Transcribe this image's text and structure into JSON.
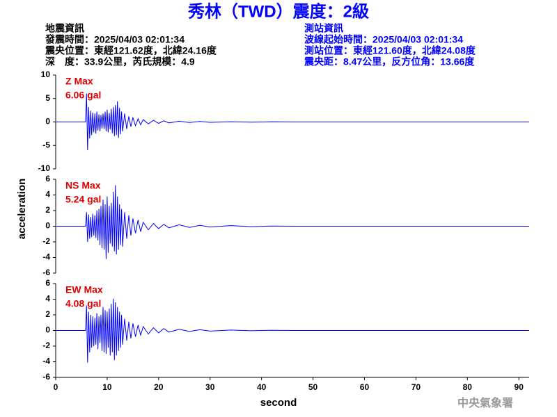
{
  "header": {
    "title": "秀林（TWD）震度：2級",
    "left": [
      "地震資訊",
      "發震時間：2025/04/03 02:01:34",
      "震央位置：東經121.62度，北緯24.16度",
      "深　度：33.9公里，芮氏規模：4.9"
    ],
    "right": [
      "測站資訊",
      "波線起始時間：2025/04/03 02:01:34",
      "測站位置：東經121.60度，北緯24.08度",
      "震央距：8.47公里，反方位角：13.66度"
    ]
  },
  "footer": "中央氣象署",
  "chart_data": [
    {
      "type": "line",
      "annotations": [
        "Z Max",
        "6.06 gal"
      ],
      "xlim": [
        0,
        92
      ],
      "ylim": [
        -10,
        10
      ],
      "yticks": [
        -10,
        -5,
        0,
        5,
        10
      ],
      "x": [
        0,
        5.8,
        6.0,
        6.2,
        6.4,
        6.6,
        6.8,
        7.0,
        7.2,
        7.4,
        7.6,
        7.8,
        8.0,
        8.2,
        8.4,
        8.6,
        8.8,
        9.0,
        9.2,
        9.4,
        9.6,
        9.8,
        10.0,
        10.2,
        10.4,
        10.6,
        10.8,
        11.0,
        11.2,
        11.4,
        11.6,
        11.8,
        12.0,
        12.2,
        12.4,
        12.6,
        12.8,
        13.0,
        13.4,
        13.8,
        14.2,
        14.6,
        15.0,
        15.5,
        16,
        16.5,
        17,
        18,
        19,
        20,
        21,
        22,
        24,
        26,
        28,
        30,
        34,
        38,
        42,
        46,
        50,
        92
      ],
      "series": [
        {
          "name": "Z",
          "color": "#0000ff",
          "values": [
            0,
            0,
            6.06,
            -6.0,
            3.2,
            -3.5,
            2.4,
            -2.8,
            2.0,
            -2.2,
            1.8,
            -2.5,
            2.2,
            -1.8,
            1.6,
            -2.0,
            1.5,
            -1.4,
            1.8,
            -1.5,
            2.2,
            -2.0,
            2.6,
            -2.2,
            1.9,
            -1.6,
            2.8,
            -2.4,
            3.2,
            -3.0,
            3.6,
            -2.8,
            4.4,
            -3.4,
            3.0,
            -2.6,
            2.2,
            -2.0,
            1.8,
            -1.5,
            1.2,
            -1.0,
            0.9,
            -0.8,
            0.7,
            -0.6,
            0.5,
            -0.4,
            0.35,
            -0.3,
            0.25,
            -0.2,
            0.15,
            -0.12,
            0.1,
            -0.08,
            0.05,
            -0.04,
            0.03,
            0,
            0,
            0
          ]
        }
      ]
    },
    {
      "type": "line",
      "annotations": [
        "NS Max",
        "5.24 gal"
      ],
      "ylabel": "acceleration",
      "xlim": [
        0,
        92
      ],
      "ylim": [
        -6,
        6
      ],
      "yticks": [
        -6,
        -4,
        -2,
        0,
        2,
        4,
        6
      ],
      "x": [
        0,
        5.8,
        6.0,
        6.2,
        6.4,
        6.6,
        6.8,
        7.0,
        7.2,
        7.4,
        7.6,
        7.8,
        8.0,
        8.2,
        8.4,
        8.6,
        8.8,
        9.0,
        9.2,
        9.4,
        9.6,
        9.8,
        10.0,
        10.2,
        10.4,
        10.6,
        10.8,
        11.0,
        11.2,
        11.4,
        11.6,
        11.8,
        12.0,
        12.2,
        12.4,
        12.6,
        12.8,
        13.0,
        13.4,
        13.8,
        14.2,
        14.6,
        15.0,
        15.5,
        16,
        16.5,
        17,
        18,
        19,
        20,
        21,
        22,
        24,
        26,
        28,
        30,
        34,
        38,
        42,
        46,
        50,
        92
      ],
      "series": [
        {
          "name": "NS",
          "color": "#0000ff",
          "values": [
            0,
            0,
            1.8,
            -2.0,
            1.5,
            -1.6,
            1.2,
            -1.4,
            1.6,
            -1.2,
            1.4,
            -1.5,
            2.0,
            -1.8,
            2.2,
            -2.4,
            2.6,
            -2.8,
            3.4,
            -3.0,
            2.8,
            -4.2,
            3.8,
            -3.4,
            2.6,
            -2.2,
            3.0,
            -2.6,
            4.4,
            -3.2,
            5.24,
            -3.6,
            3.8,
            -3.0,
            2.8,
            -2.4,
            2.2,
            -2.6,
            1.8,
            -1.6,
            1.4,
            -1.2,
            1.0,
            -0.9,
            0.8,
            -0.7,
            0.5,
            -0.45,
            0.35,
            -0.3,
            0.25,
            -0.2,
            0.18,
            -0.15,
            0.12,
            -0.1,
            0.08,
            -0.05,
            0.03,
            0,
            0,
            0
          ]
        }
      ]
    },
    {
      "type": "line",
      "annotations": [
        "EW Max",
        "4.08 gal"
      ],
      "xlabel": "second",
      "xlim": [
        0,
        92
      ],
      "xticks": [
        0,
        10,
        20,
        30,
        40,
        50,
        60,
        70,
        80,
        90
      ],
      "ylim": [
        -6,
        6
      ],
      "yticks": [
        -6,
        -4,
        -2,
        0,
        2,
        4,
        6
      ],
      "x": [
        0,
        5.8,
        6.0,
        6.2,
        6.4,
        6.6,
        6.8,
        7.0,
        7.2,
        7.4,
        7.6,
        7.8,
        8.0,
        8.2,
        8.4,
        8.6,
        8.8,
        9.0,
        9.2,
        9.4,
        9.6,
        9.8,
        10.0,
        10.2,
        10.4,
        10.6,
        10.8,
        11.0,
        11.2,
        11.4,
        11.6,
        11.8,
        12.0,
        12.2,
        12.4,
        12.6,
        12.8,
        13.0,
        13.4,
        13.8,
        14.2,
        14.6,
        15.0,
        15.5,
        16,
        16.5,
        17,
        18,
        19,
        20,
        21,
        22,
        24,
        26,
        28,
        30,
        34,
        38,
        42,
        46,
        50,
        92
      ],
      "series": [
        {
          "name": "EW",
          "color": "#0000ff",
          "values": [
            0,
            0,
            3.2,
            -4.1,
            2.4,
            -2.8,
            2.0,
            -2.2,
            1.8,
            -2.0,
            1.6,
            -1.8,
            2.2,
            -2.4,
            1.8,
            -1.6,
            2.0,
            -2.6,
            3.0,
            -2.8,
            2.6,
            -3.0,
            2.4,
            -2.2,
            2.8,
            -3.2,
            3.4,
            -2.8,
            4.08,
            -3.8,
            3.6,
            -3.2,
            3.0,
            -2.6,
            2.4,
            -2.2,
            2.0,
            -1.8,
            1.5,
            -1.3,
            1.1,
            -1.0,
            0.9,
            -0.8,
            0.7,
            -0.6,
            0.5,
            -0.45,
            0.35,
            -0.3,
            0.25,
            -0.2,
            0.15,
            -0.12,
            0.1,
            -0.08,
            0.05,
            -0.04,
            0.03,
            0,
            0,
            0
          ]
        }
      ]
    }
  ]
}
